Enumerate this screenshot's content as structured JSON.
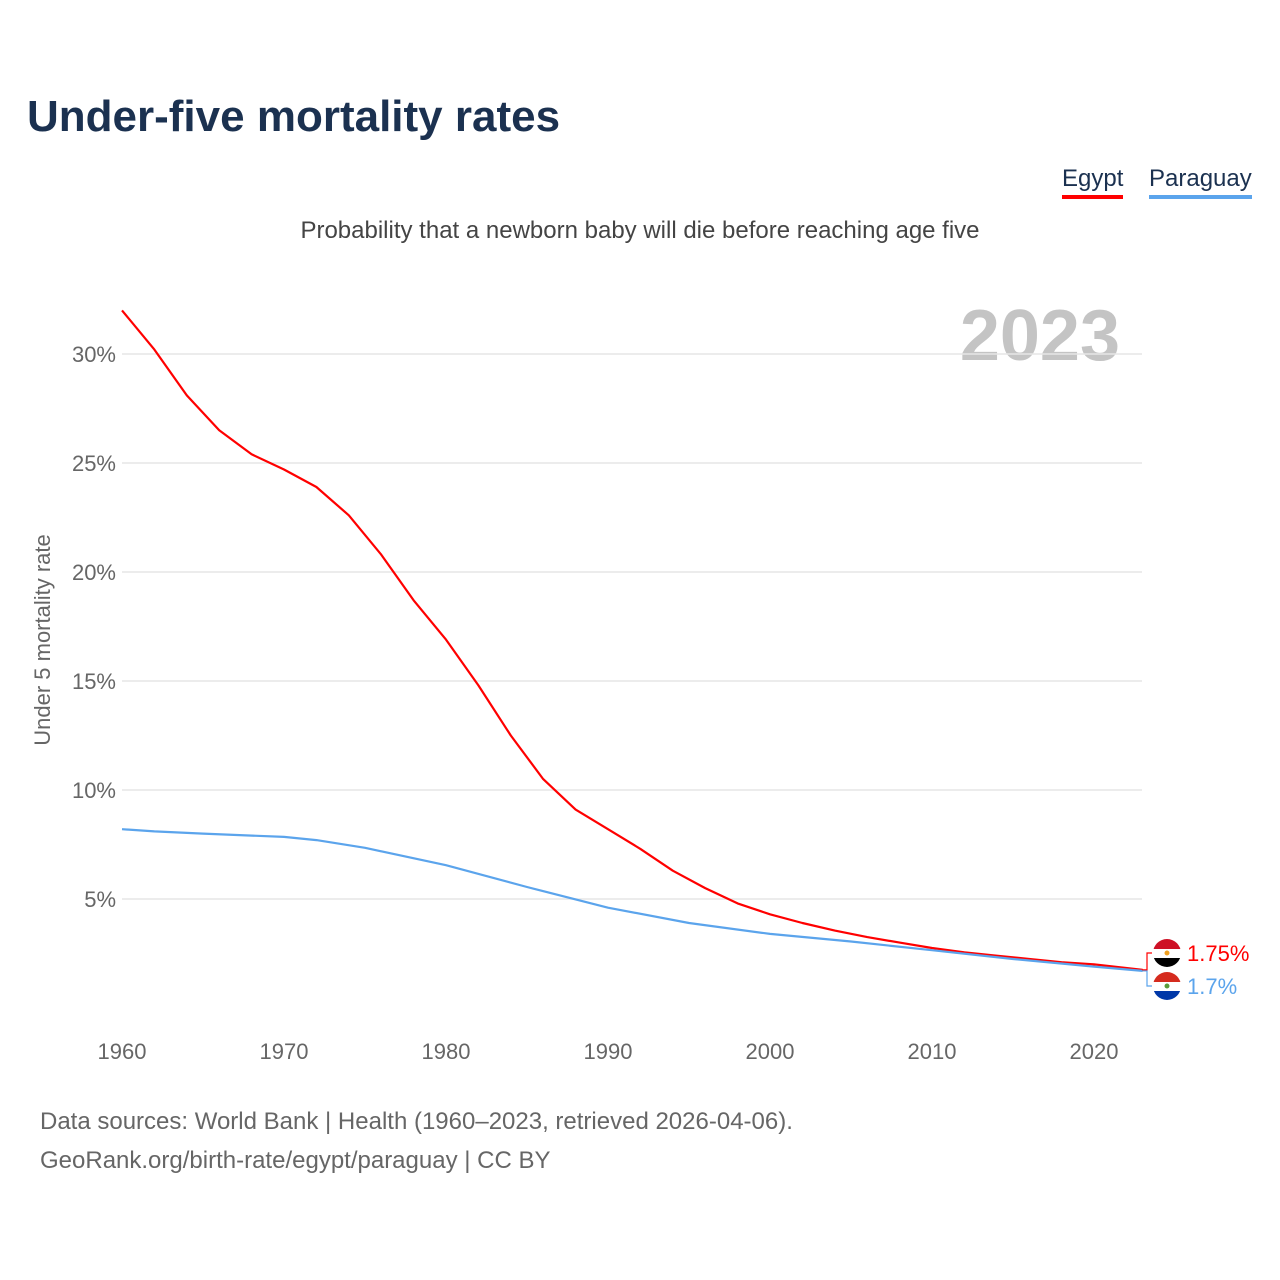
{
  "title": "Under-five mortality rates",
  "footer": {
    "line1": "Data sources: World Bank | Health (1960–2023, retrieved 2026-04-06).",
    "line2": "GeoRank.org/birth-rate/egypt/paraguay | CC BY"
  },
  "chart_data": {
    "type": "line",
    "title": "Under-five mortality rates",
    "subtitle": "Probability that a newborn baby will die before reaching age five",
    "ylabel": "Under 5 mortality rate",
    "xlabel": "",
    "year_label": "2023",
    "xlim": [
      1960,
      2023
    ],
    "ylim": [
      0,
      32
    ],
    "x_ticks": [
      1960,
      1970,
      1980,
      1990,
      2000,
      2010,
      2020
    ],
    "y_ticks": [
      5,
      10,
      15,
      20,
      25,
      30
    ],
    "y_tick_labels": [
      "5%",
      "10%",
      "15%",
      "20%",
      "25%",
      "30%"
    ],
    "legend_placement": "top-right",
    "series": [
      {
        "name": "Egypt",
        "color": "#ff0000",
        "end_label": "1.75%",
        "x": [
          1960,
          1962,
          1964,
          1966,
          1968,
          1970,
          1972,
          1974,
          1976,
          1978,
          1980,
          1982,
          1984,
          1986,
          1988,
          1990,
          1992,
          1994,
          1996,
          1998,
          2000,
          2002,
          2004,
          2006,
          2008,
          2010,
          2012,
          2014,
          2016,
          2018,
          2020,
          2023
        ],
        "values": [
          32.0,
          30.2,
          28.1,
          26.5,
          25.4,
          24.7,
          23.9,
          22.6,
          20.8,
          18.7,
          16.9,
          14.8,
          12.5,
          10.5,
          9.1,
          8.2,
          7.3,
          6.3,
          5.5,
          4.8,
          4.3,
          3.9,
          3.55,
          3.25,
          3.0,
          2.75,
          2.55,
          2.4,
          2.25,
          2.1,
          2.0,
          1.75
        ]
      },
      {
        "name": "Paraguay",
        "color": "#5ba4ec",
        "end_label": "1.7%",
        "x": [
          1960,
          1962,
          1965,
          1970,
          1972,
          1975,
          1980,
          1985,
          1990,
          1995,
          2000,
          2005,
          2010,
          2015,
          2020,
          2023
        ],
        "values": [
          8.2,
          8.1,
          8.0,
          7.85,
          7.7,
          7.35,
          6.55,
          5.55,
          4.6,
          3.9,
          3.4,
          3.05,
          2.65,
          2.25,
          1.9,
          1.7
        ]
      }
    ]
  }
}
